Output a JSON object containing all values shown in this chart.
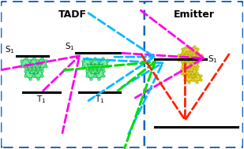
{
  "tadf_title": "TADF",
  "emitter_title": "Emitter",
  "box_edge_color": "#1565c0",
  "title_fontsize": 9,
  "label_fontsize": 7.5,
  "tadf_color": "#55ee88",
  "emitter_color": "#ddcc22",
  "tadf_bond_color": "#22aa55",
  "emitter_bond_color": "#bbaa00",
  "level_color": "#000000",
  "level_lw": 2.2,
  "arrow_lw": 2.0,
  "magenta": "#ff00ee",
  "cyan": "#00bbff",
  "green": "#00dd00",
  "red": "#ff2200"
}
